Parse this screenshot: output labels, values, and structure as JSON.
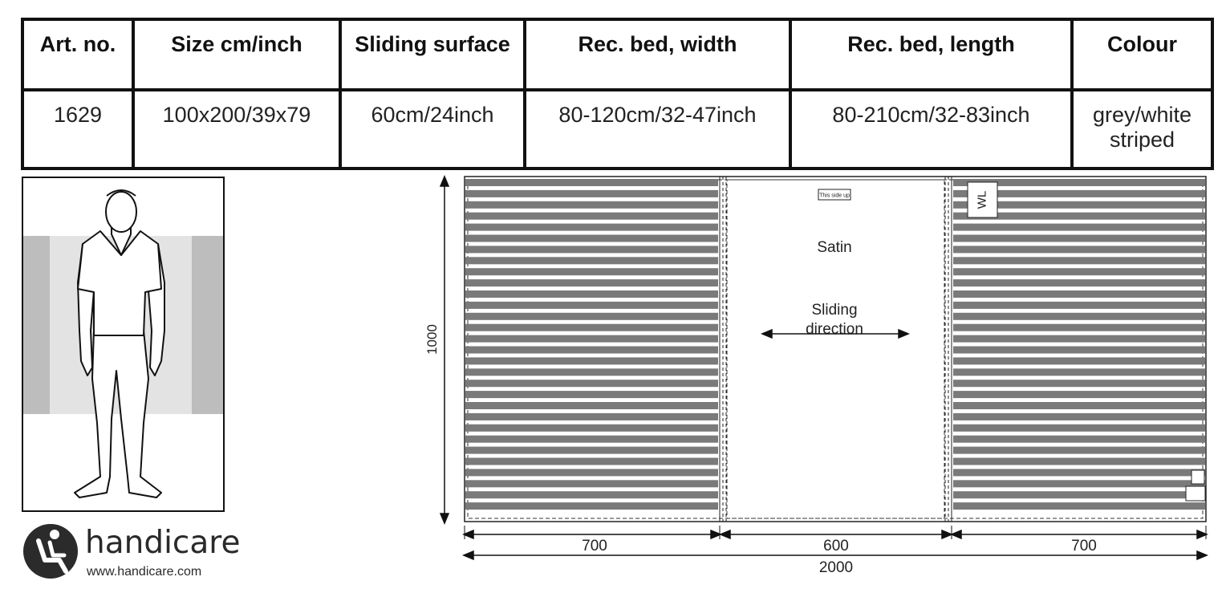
{
  "table": {
    "headers": [
      "Art. no.",
      "Size cm/inch",
      "Sliding surface",
      "Rec. bed, width",
      "Rec. bed, length",
      "Colour"
    ],
    "row": [
      "1629",
      "100x200/39x79",
      "60cm/24inch",
      "80-120cm/32-47inch",
      "80-210cm/32-83inch",
      "grey/white striped"
    ]
  },
  "logo": {
    "name": "handicare",
    "url": "www.handicare.com"
  },
  "drawing": {
    "center_label": "Satin",
    "direction_label_line1": "Sliding",
    "direction_label_line2": "direction",
    "tag_label": "This side up",
    "wl_label": "WL",
    "height_dim": "1000",
    "dim_left": "700",
    "dim_center": "600",
    "dim_right": "700",
    "dim_total": "2000"
  },
  "colors": {
    "stripe": "#7a7a7a",
    "panel_grey": "#c4c4c4",
    "panel_light": "#e3e3e3"
  }
}
